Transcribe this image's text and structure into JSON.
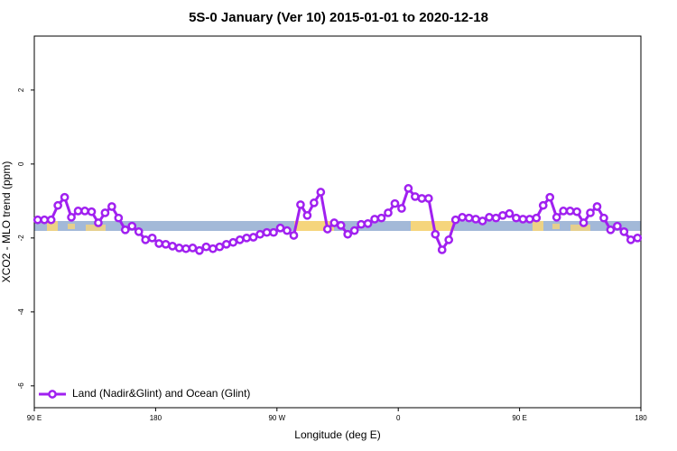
{
  "chart_data": {
    "type": "line",
    "title": "5S-0 January (Ver 10)   2015-01-01 to 2020-12-18",
    "x_label": "Longitude (deg E)",
    "y_label": "XCO2 - MLO trend (ppm)",
    "x": [
      92.5,
      97.5,
      102.5,
      107.5,
      112.5,
      117.5,
      122.5,
      127.5,
      132.5,
      137.5,
      142.5,
      147.5,
      152.5,
      157.5,
      162.5,
      167.5,
      172.5,
      177.5,
      182.5,
      187.5,
      192.5,
      197.5,
      202.5,
      207.5,
      212.5,
      217.5,
      222.5,
      227.5,
      232.5,
      237.5,
      242.5,
      247.5,
      252.5,
      257.5,
      262.5,
      267.5,
      272.5,
      277.5,
      282.5,
      287.5,
      292.5,
      297.5,
      302.5,
      307.5,
      312.5,
      317.5,
      322.5,
      327.5,
      332.5,
      337.5,
      342.5,
      347.5,
      352.5,
      357.5,
      362.5,
      367.5,
      372.5,
      377.5,
      382.5,
      387.5,
      392.5,
      397.5,
      402.5,
      407.5,
      412.5,
      417.5,
      422.5,
      427.5,
      432.5,
      437.5,
      442.5,
      447.5,
      452.5,
      457.5,
      462.5,
      467.5,
      472.5,
      477.5,
      482.5,
      487.5,
      492.5,
      497.5,
      502.5,
      507.5,
      512.5,
      517.5,
      522.5,
      527.5,
      532.5,
      537.5
    ],
    "series": [
      {
        "name": "Land (Nadir&Glint) and Ocean (Glint)",
        "color": "#a020f0",
        "values": [
          -1.51,
          -1.51,
          -1.51,
          -1.12,
          -0.9,
          -1.44,
          -1.27,
          -1.27,
          -1.29,
          -1.59,
          -1.32,
          -1.15,
          -1.46,
          -1.78,
          -1.68,
          -1.83,
          -2.05,
          -2.0,
          -2.15,
          -2.17,
          -2.22,
          -2.27,
          -2.29,
          -2.27,
          -2.34,
          -2.24,
          -2.29,
          -2.24,
          -2.17,
          -2.12,
          -2.05,
          -2.0,
          -1.98,
          -1.9,
          -1.85,
          -1.85,
          -1.73,
          -1.8,
          -1.93,
          -1.1,
          -1.39,
          -1.05,
          -0.76,
          -1.76,
          -1.59,
          -1.66,
          -1.9,
          -1.8,
          -1.63,
          -1.61,
          -1.49,
          -1.46,
          -1.32,
          -1.07,
          -1.2,
          -0.66,
          -0.88,
          -0.93,
          -0.93,
          -1.9,
          -2.32,
          -2.05,
          -1.51,
          -1.44,
          -1.46,
          -1.49,
          -1.54,
          -1.44,
          -1.46,
          -1.39,
          -1.34,
          -1.46,
          -1.49,
          -1.49,
          -1.46,
          -1.12,
          -0.9,
          -1.44,
          -1.27,
          -1.27,
          -1.29,
          -1.59,
          -1.32,
          -1.15,
          -1.46,
          -1.78,
          -1.68,
          -1.83,
          -2.05,
          -2.0
        ]
      }
    ],
    "xlim": [
      90,
      540
    ],
    "xticks": [
      {
        "value": 90,
        "label": "90 E"
      },
      180,
      {
        "value": 270,
        "label": "90 W"
      },
      {
        "value": 360,
        "label": "0"
      },
      {
        "value": 450,
        "label": "90 E"
      },
      {
        "value": 540,
        "label": "180"
      }
    ],
    "ylim": [
      -6.59,
      3.46
    ],
    "yticks": [
      -6,
      -4,
      -2,
      0,
      2
    ],
    "grid": false,
    "legend": "bottom-left"
  }
}
